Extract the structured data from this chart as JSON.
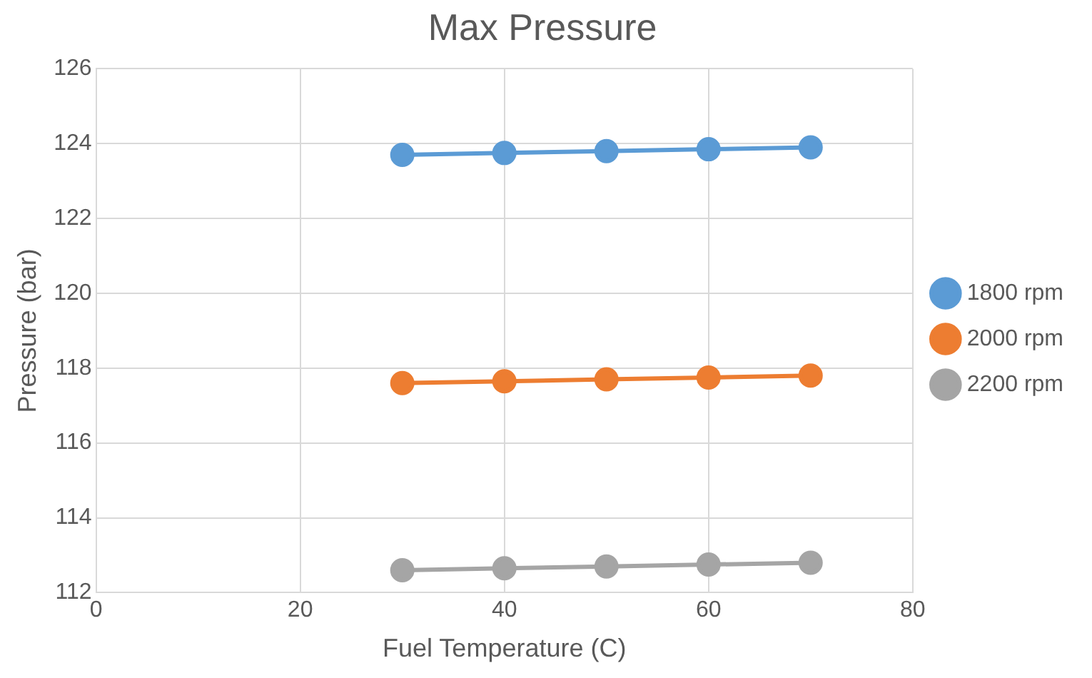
{
  "chart_data": {
    "type": "line",
    "title": "Max Pressure",
    "xlabel": "Fuel Temperature (C)",
    "ylabel": "Pressure (bar)",
    "x": [
      30,
      40,
      50,
      60,
      70
    ],
    "series": [
      {
        "name": "1800 rpm",
        "color": "#5b9bd5",
        "values": [
          123.7,
          123.75,
          123.8,
          123.85,
          123.9
        ]
      },
      {
        "name": "2000 rpm",
        "color": "#ed7d31",
        "values": [
          117.6,
          117.65,
          117.7,
          117.75,
          117.8
        ]
      },
      {
        "name": "2200 rpm",
        "color": "#a5a5a5",
        "values": [
          112.6,
          112.65,
          112.7,
          112.75,
          112.8
        ]
      }
    ],
    "xlim": [
      0,
      80
    ],
    "xticks": [
      0,
      20,
      40,
      60,
      80
    ],
    "ylim": [
      112,
      126
    ],
    "yticks": [
      112,
      114,
      116,
      118,
      120,
      122,
      124,
      126
    ],
    "grid": true,
    "legend": "right",
    "marker": "circle",
    "line_style": "solid"
  }
}
